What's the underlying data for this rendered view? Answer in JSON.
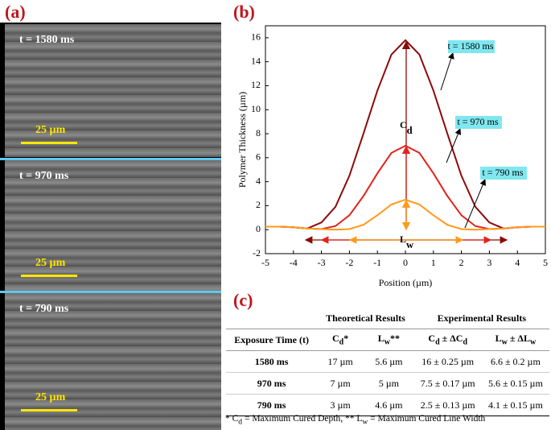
{
  "panel_labels": [
    "(a)",
    "(b)",
    "(c)"
  ],
  "panel_a": {
    "frames": [
      {
        "label": "t = 1580 ms",
        "scale": "25 µm"
      },
      {
        "label": "t = 970 ms",
        "scale": "25 µm"
      },
      {
        "label": "t = 790 ms",
        "scale": "25 µm"
      }
    ]
  },
  "chart_data": {
    "type": "line",
    "x_label": "Position (µm)",
    "y_label": "Polymer Thickness (µm)",
    "x": [
      -5,
      -4.5,
      -4,
      -3.5,
      -3,
      -2.5,
      -2,
      -1.5,
      -1,
      -0.5,
      0,
      0.5,
      1,
      1.5,
      2,
      2.5,
      3,
      3.5,
      4,
      4.5,
      5
    ],
    "series": [
      {
        "name": "t = 1580 ms",
        "color": "#8b0a0a",
        "values": [
          0.25,
          0.25,
          0.2,
          0.1,
          0.6,
          1.9,
          4.5,
          8,
          11.6,
          14.6,
          15.8,
          14.6,
          11.6,
          8,
          4.5,
          1.9,
          0.6,
          0.1,
          0.2,
          0.25,
          0.25
        ]
      },
      {
        "name": "t = 970 ms",
        "color": "#e3231c",
        "values": [
          0.25,
          0.25,
          0.2,
          0.1,
          0.05,
          0.3,
          1.2,
          2.8,
          4.7,
          6.4,
          7,
          6.4,
          4.7,
          2.8,
          1.2,
          0.3,
          0.05,
          0.1,
          0.2,
          0.25,
          0.25
        ]
      },
      {
        "name": "t = 790 ms",
        "color": "#ff9a1a",
        "values": [
          0.25,
          0.25,
          0.2,
          0.1,
          0.05,
          0,
          0.05,
          0.4,
          1.2,
          2.1,
          2.5,
          2.1,
          1.2,
          0.4,
          0.05,
          0,
          0.05,
          0.1,
          0.2,
          0.25,
          0.25
        ]
      }
    ],
    "xlim": [
      -5,
      5
    ],
    "ylim": [
      -2,
      17
    ],
    "xticks": [
      -5,
      -4,
      -3,
      -2,
      -1,
      0,
      1,
      2,
      3,
      4,
      5
    ],
    "yticks": [
      -2,
      0,
      2,
      4,
      6,
      8,
      10,
      12,
      14,
      16
    ],
    "annotations": {
      "depth": [
        "C",
        "d"
      ],
      "width": [
        "L",
        "w"
      ]
    }
  },
  "table": {
    "groups": [
      "Theoretical Results",
      "Experimental Results"
    ],
    "header": [
      [
        "Exposure Time (t)"
      ],
      [
        "C",
        "d",
        "*"
      ],
      [
        "L",
        "w",
        "**"
      ],
      [
        "C",
        "d",
        " ± ΔC",
        "d"
      ],
      [
        "L",
        "w",
        " ± ΔL",
        "w"
      ]
    ],
    "rows": [
      [
        "1580 ms",
        "17 µm",
        "5.6 µm",
        "16 ± 0.25 µm",
        "6.6 ± 0.2 µm"
      ],
      [
        "970 ms",
        "7 µm",
        "5 µm",
        "7.5 ± 0.17 µm",
        "5.6 ± 0.15 µm"
      ],
      [
        "790 ms",
        "3 µm",
        "4.6 µm",
        "2.5 ± 0.13 µm",
        "4.1 ± 0.15 µm"
      ]
    ],
    "footnote": [
      "* C",
      "d",
      " = Maximum Cured Depth, ** L",
      "w",
      " = Maximum Cured Line Width"
    ]
  }
}
